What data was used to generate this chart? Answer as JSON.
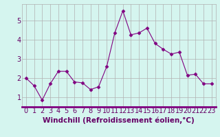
{
  "x": [
    0,
    1,
    2,
    3,
    4,
    5,
    6,
    7,
    8,
    9,
    10,
    11,
    12,
    13,
    14,
    15,
    16,
    17,
    18,
    19,
    20,
    21,
    22,
    23
  ],
  "y": [
    2.0,
    1.6,
    0.85,
    1.7,
    2.35,
    2.35,
    1.8,
    1.75,
    1.4,
    1.55,
    2.6,
    4.35,
    5.5,
    4.25,
    4.35,
    4.6,
    3.8,
    3.5,
    3.25,
    3.35,
    2.15,
    2.2,
    1.7,
    1.7
  ],
  "line_color": "#800080",
  "marker": "D",
  "marker_size": 2.5,
  "xlabel": "Windchill (Refroidissement éolien,°C)",
  "xlabel_fontsize": 7.5,
  "ylabel_ticks": [
    1,
    2,
    3,
    4,
    5
  ],
  "xlim": [
    -0.5,
    23.5
  ],
  "ylim": [
    0.5,
    5.85
  ],
  "bg_color": "#d5f5ef",
  "grid_color": "#b0b0b0",
  "tick_label_fontsize": 7,
  "axis_label_color": "#660066",
  "tick_color": "#660066",
  "spine_color": "#800080"
}
